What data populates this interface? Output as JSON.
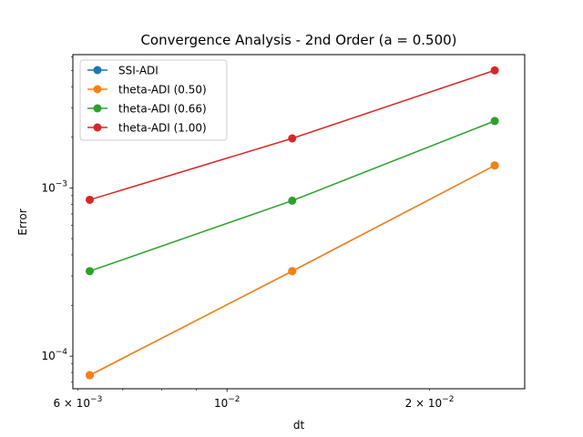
{
  "chart_data": {
    "type": "line",
    "title": "Convergence Analysis - 2nd Order (a = 0.500)",
    "xlabel": "dt",
    "ylabel": "Error",
    "xscale": "log",
    "yscale": "log",
    "xlim": [
      0.0059,
      0.0277
    ],
    "ylim": [
      6.4e-05,
      0.0062
    ],
    "grid": false,
    "legend_position": "upper-left",
    "x": [
      0.00625,
      0.0125,
      0.025
    ],
    "x_ticks": [
      {
        "value": 0.006,
        "label": "6 × 10⁻³",
        "major": false
      },
      {
        "value": 0.01,
        "label": "10⁻²",
        "major": true
      },
      {
        "value": 0.02,
        "label": "2 × 10⁻²",
        "major": false
      }
    ],
    "y_ticks": [
      {
        "value": 0.0001,
        "label": "10⁻⁴"
      },
      {
        "value": 0.001,
        "label": "10⁻³"
      }
    ],
    "series": [
      {
        "name": "SSI-ADI",
        "color": "#1f77b4",
        "values": [
          7.7e-05,
          0.00032,
          0.00136
        ]
      },
      {
        "name": "theta-ADI (0.50)",
        "color": "#ff7f0e",
        "values": [
          7.7e-05,
          0.00032,
          0.00136
        ]
      },
      {
        "name": "theta-ADI (0.66)",
        "color": "#2ca02c",
        "values": [
          0.00032,
          0.00084,
          0.0025
        ]
      },
      {
        "name": "theta-ADI (1.00)",
        "color": "#d62728",
        "values": [
          0.00085,
          0.00197,
          0.005
        ]
      }
    ]
  }
}
